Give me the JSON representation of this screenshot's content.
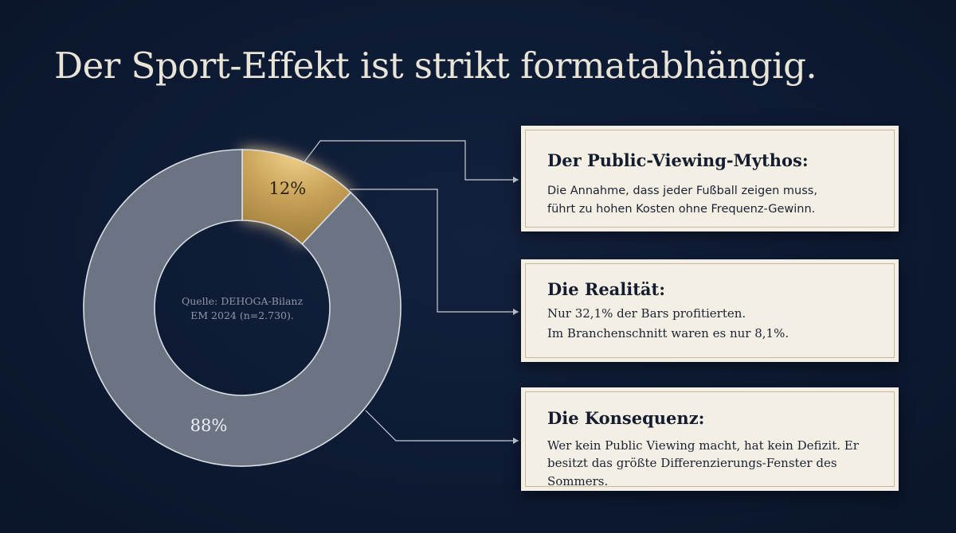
{
  "title": "Der Sport-Effekt ist strikt formatabhängig.",
  "chart_data": {
    "type": "pie",
    "style": "donut",
    "slices": [
      {
        "label": "12%",
        "value": 12,
        "color": "#c9a35b"
      },
      {
        "label": "88%",
        "value": 88,
        "color": "#6a7483"
      }
    ],
    "center_text": [
      "Quelle: DEHOGA-Bilanz",
      "EM 2024 (n=2.730)."
    ]
  },
  "cards": [
    {
      "heading": "Der Public-Viewing-Mythos:",
      "lines": [
        "Die Annahme, dass jeder Fußball zeigen muss,",
        "führt zu hohen Kosten ohne Frequenz-Gewinn."
      ]
    },
    {
      "heading": "Die Realität:",
      "lines": [
        "Nur 32,1% der Bars profitierten.",
        "Im Branchenschnitt waren es nur 8,1%."
      ]
    },
    {
      "heading": "Die Konsequenz:",
      "lines": [
        "Wer kein Public Viewing macht, hat kein Defizit. Er",
        "besitzt das größte Differenzierungs-Fenster des Sommers."
      ]
    }
  ]
}
